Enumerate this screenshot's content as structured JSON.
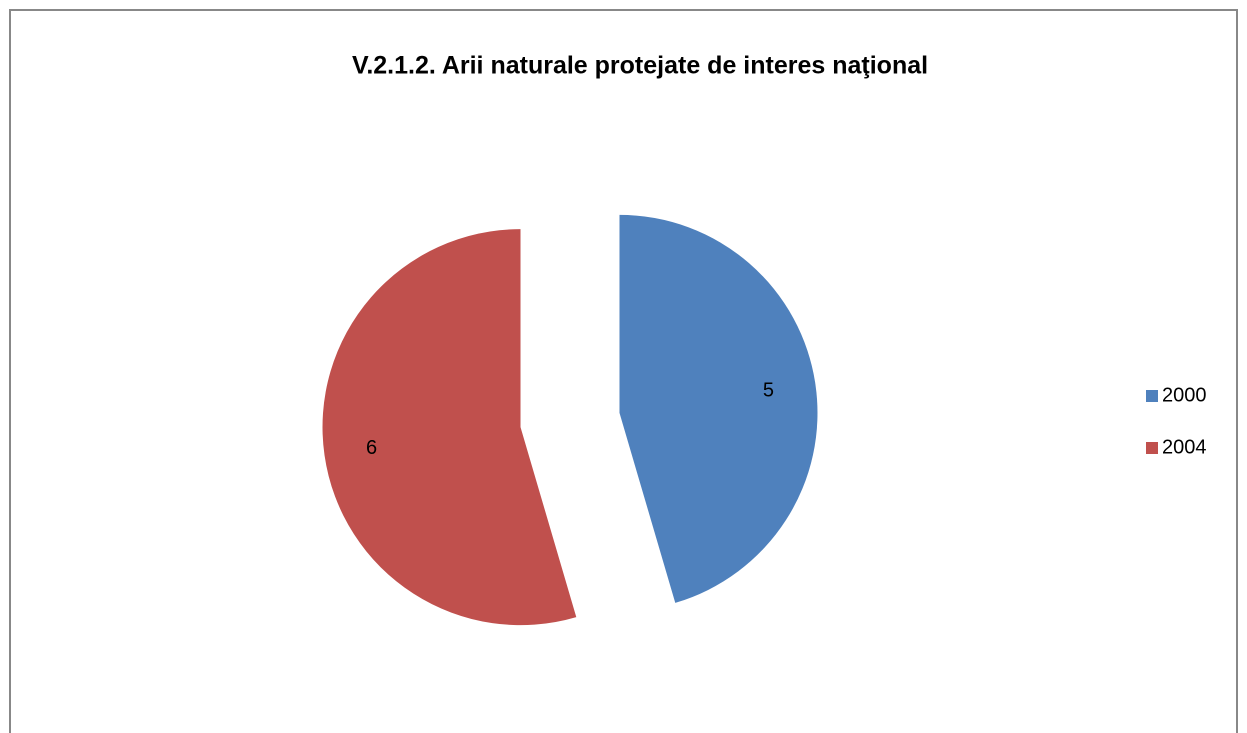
{
  "chart_data": {
    "type": "pie",
    "title": "V.2.1.2. Arii naturale protejate de interes naţional",
    "categories": [
      "2000",
      "2004"
    ],
    "values": [
      5,
      6
    ],
    "colors": [
      "#4f81bd",
      "#c0504d"
    ],
    "legend": "right"
  }
}
